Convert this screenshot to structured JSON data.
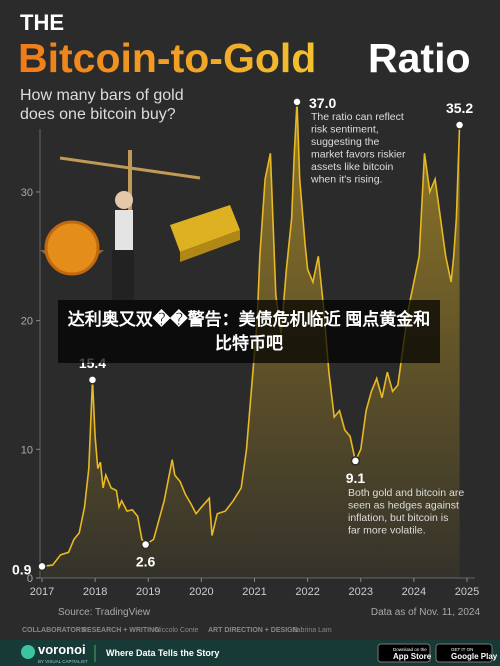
{
  "title_prefix": "THE",
  "title": "Bitcoin-to-Gold",
  "title_suffix": "Ratio",
  "subtitle": [
    "How many bars of gold",
    "does one bitcoin buy?"
  ],
  "banner": "达利奥又双��警告：美债危机临近 囤点黄金和比特币吧",
  "chart_data": {
    "type": "line",
    "color": "#e8b923",
    "xlim": [
      2017,
      2025
    ],
    "ylim": [
      0,
      38
    ],
    "xticks": [
      2017,
      2018,
      2019,
      2020,
      2021,
      2022,
      2023,
      2024,
      2025
    ],
    "yticks": [
      0,
      10,
      20,
      30
    ],
    "grid": false,
    "series": [
      {
        "x": [
          2017.0,
          2017.2,
          2017.35,
          2017.5,
          2017.6,
          2017.7,
          2017.8,
          2017.88,
          2017.95,
          2018.0,
          2018.05,
          2018.1,
          2018.15,
          2018.2,
          2018.3,
          2018.4,
          2018.45,
          2018.5,
          2018.6,
          2018.7,
          2018.8,
          2018.88,
          2018.95,
          2019.1,
          2019.3,
          2019.45,
          2019.5,
          2019.6,
          2019.7,
          2019.8,
          2019.9,
          2020.0,
          2020.15,
          2020.2,
          2020.3,
          2020.45,
          2020.6,
          2020.75,
          2020.85,
          2020.95,
          2021.05,
          2021.1,
          2021.2,
          2021.3,
          2021.4,
          2021.5,
          2021.6,
          2021.7,
          2021.75,
          2021.8,
          2021.85,
          2021.95,
          2022.0,
          2022.1,
          2022.2,
          2022.3,
          2022.4,
          2022.5,
          2022.6,
          2022.7,
          2022.8,
          2022.9,
          2023.0,
          2023.1,
          2023.2,
          2023.3,
          2023.4,
          2023.5,
          2023.6,
          2023.7,
          2023.8,
          2023.9,
          2024.0,
          2024.1,
          2024.2,
          2024.3,
          2024.4,
          2024.5,
          2024.6,
          2024.7,
          2024.75,
          2024.8,
          2024.86
        ],
        "values": [
          0.9,
          1.0,
          1.8,
          2.0,
          3.0,
          3.5,
          5.5,
          8.5,
          15.4,
          11,
          8.5,
          9,
          7,
          8,
          7,
          6.8,
          5.5,
          6,
          5.2,
          5.3,
          4.8,
          3,
          2.6,
          3,
          6,
          9.2,
          8,
          7.5,
          6.5,
          5.8,
          5,
          5.5,
          6.2,
          3.3,
          5,
          5.2,
          6,
          7,
          10,
          15,
          20,
          25,
          31,
          33,
          22,
          19,
          24,
          28,
          33,
          37.0,
          31,
          26,
          24,
          23,
          25,
          21,
          16,
          12.5,
          13,
          11.5,
          11,
          9.1,
          10,
          13,
          14.5,
          15.5,
          14,
          16,
          14.5,
          15,
          18,
          21,
          23,
          25,
          33,
          30,
          31,
          28,
          25,
          23,
          25,
          28,
          35.2
        ]
      }
    ],
    "highlights": [
      {
        "x": 2017.0,
        "value": 0.9,
        "label": "0.9"
      },
      {
        "x": 2017.95,
        "value": 15.4,
        "label": "15.4"
      },
      {
        "x": 2018.95,
        "value": 2.6,
        "label": "2.6"
      },
      {
        "x": 2021.8,
        "value": 37,
        "label": "37.0",
        "note": [
          "The ratio can reflect",
          "risk sentiment,",
          "suggesting the",
          "market favors riskier",
          "assets like bitcoin",
          "when it's rising."
        ]
      },
      {
        "x": 2022.9,
        "value": 9.1,
        "label": "9.1",
        "note": [
          "Both gold and bitcoin are",
          "seen as hedges against",
          "inflation, but bitcoin is",
          "far more volatile."
        ]
      },
      {
        "x": 2024.86,
        "value": 35.2,
        "label": "35.2"
      }
    ]
  },
  "footer": {
    "source": "Source: TradingView",
    "date": "Data as of Nov. 11, 2024",
    "credits": [
      "COLLABORATORS",
      "RESEARCH + WRITING",
      "Niccolo Conte",
      "ART DIRECTION + DESIGN",
      "Sabrina Lam"
    ],
    "brand": "voronoi",
    "brand_sub": "BY VISUAL CAPITALIST",
    "tagline": "Where Data Tells the Story",
    "apps": [
      [
        "Download on the",
        "App Store"
      ],
      [
        "GET IT ON",
        "Google Play"
      ]
    ]
  }
}
